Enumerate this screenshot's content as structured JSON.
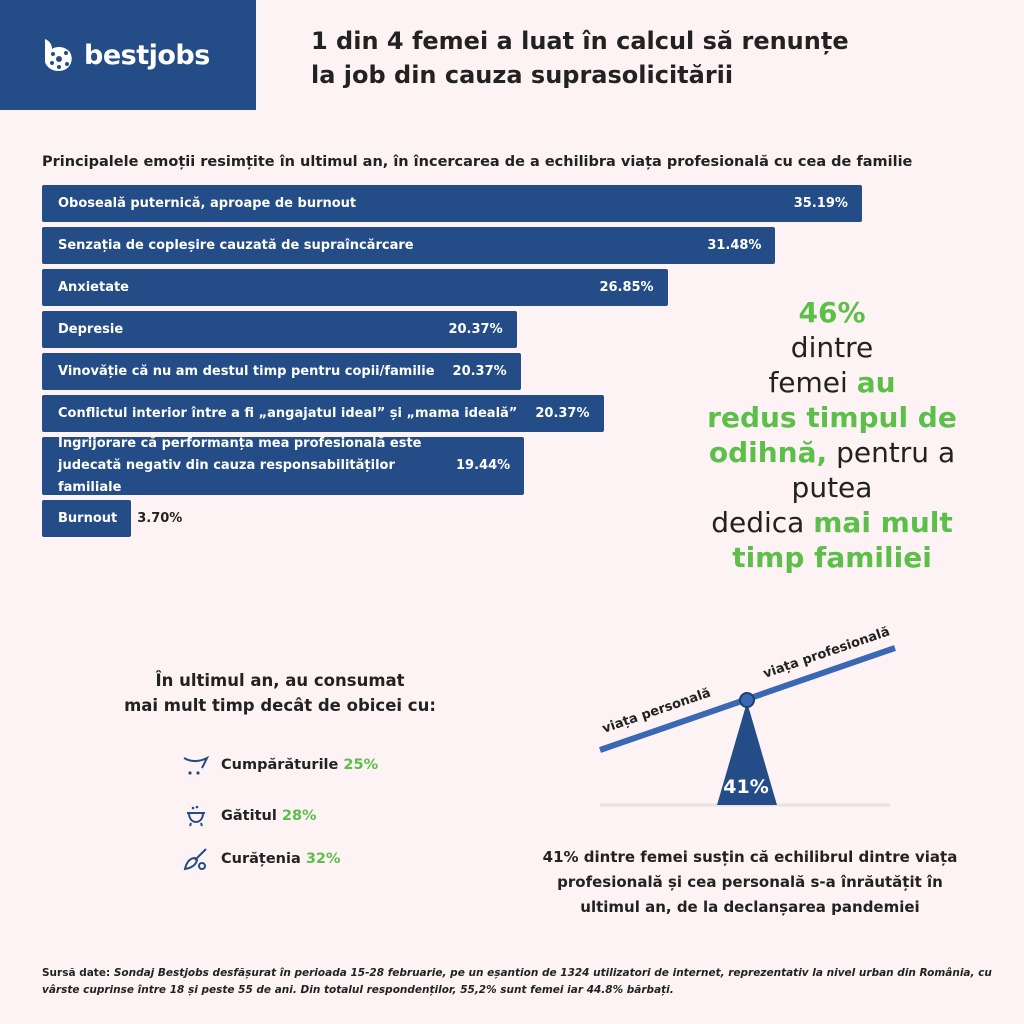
{
  "brand": {
    "name": "bestjobs",
    "color": "#244d87"
  },
  "title_lines": [
    "1 din 4 femei a luat în calcul să renunțe",
    "la job din cauza suprasolicitării"
  ],
  "chart_data": {
    "type": "bar",
    "orientation": "horizontal",
    "title": "Principalele emoții resimțite în ultimul an, în încercarea de a echilibra viața profesională cu cea de familie",
    "categories": [
      "Oboseală puternică, aproape de burnout",
      "Senzația de copleșire cauzată de supraîncărcare",
      "Anxietate",
      "Depresie",
      "Vinovăție că nu am destul timp pentru copii/familie",
      "Conflictul interior între a fi „angajatul ideal” și „mama ideală”",
      "Îngrijorare că performanța mea profesională este judecată negativ din cauza responsabilităților familiale",
      "Burnout"
    ],
    "values": [
      35.19,
      31.48,
      26.85,
      20.37,
      20.37,
      20.37,
      19.44,
      3.7
    ],
    "labels": [
      "35.19%",
      "31.48%",
      "26.85%",
      "20.37%",
      "20.37%",
      "20.37%",
      "19.44%",
      "3.70%"
    ],
    "bar_color": "#244d87"
  },
  "callout": {
    "pct": "46%",
    "t1": "dintre",
    "t2": "femei",
    "t3": "au",
    "t4": "redus timpul de",
    "t5": "odihnă,",
    "t6": "pentru a putea",
    "t7": "dedica",
    "t8": "mai mult",
    "t9": "timp familiei",
    "accent": "#5cbf4a"
  },
  "consum": {
    "line1": "În ultimul an, au consumat",
    "line2": "mai mult timp decât de obicei cu:",
    "items": [
      {
        "icon": "shopping-cart-icon",
        "label": "Cumpărăturile",
        "pct": "25%"
      },
      {
        "icon": "cooking-pot-icon",
        "label": "Gătitul",
        "pct": "28%"
      },
      {
        "icon": "cleaning-brush-icon",
        "label": "Curățenia",
        "pct": "32%"
      }
    ]
  },
  "seesaw": {
    "left": "viața personală",
    "right": "viața profesională",
    "pct": "41%"
  },
  "desc": "41% dintre femei susțin că echilibrul dintre viața profesională și cea personală s-a înrăutățit în ultimul an, de la declanșarea pandemiei",
  "footer": {
    "label": "Sursă date:",
    "text": "Sondaj Bestjobs desfășurat în perioada 15-28 februarie, pe un eșantion de 1324 utilizatori de internet, reprezentativ la nivel urban din România, cu vârste cuprinse între 18 și peste 55 de ani. Din totalul respondenților, 55,2% sunt femei iar 44.8% bărbați."
  }
}
